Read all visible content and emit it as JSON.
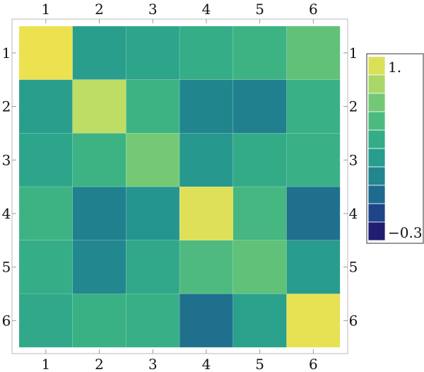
{
  "chart_data": {
    "type": "heatmap",
    "title": "",
    "xlabel": "",
    "ylabel": "",
    "x_tick_labels": [
      "1",
      "2",
      "3",
      "4",
      "5",
      "6"
    ],
    "y_tick_labels": [
      "1",
      "2",
      "3",
      "4",
      "5",
      "6"
    ],
    "matrix": [
      [
        1.0,
        0.3,
        0.35,
        0.42,
        0.48,
        0.62
      ],
      [
        0.3,
        0.85,
        0.48,
        0.15,
        0.12,
        0.45
      ],
      [
        0.35,
        0.48,
        0.68,
        0.26,
        0.41,
        0.45
      ],
      [
        0.48,
        0.12,
        0.24,
        0.95,
        0.52,
        0.05
      ],
      [
        0.42,
        0.16,
        0.38,
        0.55,
        0.62,
        0.29
      ],
      [
        0.38,
        0.46,
        0.44,
        0.05,
        0.32,
        0.98
      ]
    ],
    "colorbar": {
      "min": -0.3,
      "max": 1.0,
      "min_label": "−0.3",
      "max_label": "1.",
      "colors": [
        "#240a5c",
        "#1f2f84",
        "#1f5b8e",
        "#1f7a8c",
        "#249290",
        "#2ca58a",
        "#3db384",
        "#5cc07a",
        "#8ad070",
        "#c8df62",
        "#ece250"
      ]
    },
    "grid": false,
    "legend_placement": "right"
  }
}
